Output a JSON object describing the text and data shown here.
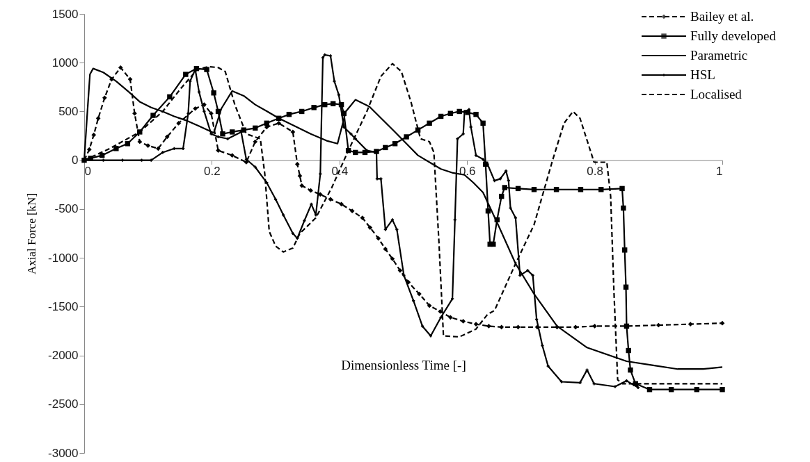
{
  "chart_data": {
    "type": "line",
    "xlabel": "Dimensionless Time [-]",
    "ylabel": "Axial Force [kN]",
    "xlim": [
      0,
      1
    ],
    "xticks": [
      0,
      0.2,
      0.4,
      0.6,
      0.8,
      1
    ],
    "ylim": [
      -3000,
      1500
    ],
    "yticks": [
      1500,
      1000,
      500,
      0,
      -500,
      -1000,
      -1500,
      -2000,
      -2500,
      -3000
    ],
    "legend": "top right",
    "series": [
      {
        "name": "Bailey et al.",
        "color": "#000000",
        "marker": "diamond",
        "line_style": "dashed",
        "x": [
          0,
          0.008,
          0.015,
          0.022,
          0.032,
          0.043,
          0.057,
          0.072,
          0.079,
          0.087,
          0.1,
          0.116,
          0.13,
          0.148,
          0.174,
          0.188,
          0.199,
          0.21,
          0.232,
          0.254,
          0.268,
          0.286,
          0.305,
          0.327,
          0.334,
          0.338,
          0.341,
          0.355,
          0.37,
          0.386,
          0.403,
          0.42,
          0.436,
          0.448,
          0.461,
          0.472,
          0.483,
          0.495,
          0.508,
          0.525,
          0.541,
          0.558,
          0.574,
          0.594,
          0.614,
          0.634,
          0.654,
          0.68,
          0.71,
          0.741,
          0.77,
          0.8,
          0.85,
          0.9,
          0.95,
          1
        ],
        "values": [
          0,
          110,
          260,
          430,
          640,
          830,
          950,
          830,
          480,
          190,
          150,
          120,
          240,
          380,
          530,
          570,
          480,
          100,
          50,
          -20,
          190,
          340,
          380,
          290,
          -40,
          -160,
          -260,
          -310,
          -350,
          -400,
          -450,
          -520,
          -590,
          -690,
          -800,
          -910,
          -1010,
          -1130,
          -1250,
          -1370,
          -1490,
          -1550,
          -1610,
          -1650,
          -1680,
          -1700,
          -1710,
          -1710,
          -1710,
          -1710,
          -1710,
          -1700,
          -1700,
          -1690,
          -1680,
          -1670
        ]
      },
      {
        "name": "Fully developed",
        "color": "#000000",
        "marker": "square",
        "line_style": "solid",
        "x": [
          0,
          0.01,
          0.028,
          0.05,
          0.068,
          0.087,
          0.108,
          0.134,
          0.159,
          0.176,
          0.192,
          0.203,
          0.21,
          0.217,
          0.232,
          0.25,
          0.268,
          0.286,
          0.305,
          0.321,
          0.341,
          0.36,
          0.377,
          0.39,
          0.403,
          0.407,
          0.414,
          0.425,
          0.44,
          0.458,
          0.472,
          0.487,
          0.505,
          0.523,
          0.541,
          0.559,
          0.574,
          0.588,
          0.601,
          0.614,
          0.625,
          0.629,
          0.633,
          0.636,
          0.641,
          0.647,
          0.654,
          0.659,
          0.68,
          0.705,
          0.74,
          0.778,
          0.81,
          0.843,
          0.845,
          0.847,
          0.849,
          0.85,
          0.853,
          0.856,
          0.864,
          0.886,
          0.92,
          0.96,
          1
        ],
        "values": [
          0,
          20,
          50,
          120,
          170,
          290,
          460,
          650,
          880,
          940,
          930,
          690,
          500,
          270,
          290,
          310,
          330,
          380,
          430,
          470,
          500,
          540,
          570,
          580,
          570,
          480,
          100,
          80,
          80,
          90,
          130,
          170,
          240,
          310,
          380,
          450,
          480,
          500,
          490,
          470,
          380,
          -40,
          -520,
          -860,
          -860,
          -610,
          -370,
          -280,
          -290,
          -300,
          -300,
          -300,
          -300,
          -290,
          -490,
          -920,
          -1300,
          -1700,
          -1950,
          -2150,
          -2290,
          -2350,
          -2350,
          -2350,
          -2350
        ]
      },
      {
        "name": "Parametric",
        "color": "#000000",
        "marker": "none",
        "line_style": "solid",
        "x": [
          0,
          0.004,
          0.009,
          0.014,
          0.03,
          0.05,
          0.07,
          0.087,
          0.105,
          0.123,
          0.141,
          0.159,
          0.18,
          0.203,
          0.215,
          0.232,
          0.25,
          0.268,
          0.287,
          0.305,
          0.33,
          0.355,
          0.38,
          0.397,
          0.41,
          0.425,
          0.447,
          0.467,
          0.487,
          0.505,
          0.523,
          0.541,
          0.559,
          0.578,
          0.596,
          0.61,
          0.625,
          0.65,
          0.676,
          0.705,
          0.741,
          0.788,
          0.85,
          0.89,
          0.93,
          0.97,
          1
        ],
        "values": [
          0,
          400,
          880,
          940,
          900,
          810,
          700,
          600,
          540,
          500,
          450,
          410,
          350,
          280,
          530,
          710,
          660,
          570,
          500,
          430,
          350,
          270,
          200,
          170,
          500,
          620,
          550,
          420,
          290,
          170,
          50,
          -20,
          -90,
          -130,
          -150,
          -230,
          -330,
          -680,
          -1060,
          -1370,
          -1700,
          -1920,
          -2060,
          -2100,
          -2140,
          -2140,
          -2120
        ]
      },
      {
        "name": "HSL",
        "color": "#000000",
        "marker": "cross",
        "line_style": "solid",
        "x": [
          0,
          0.03,
          0.06,
          0.09,
          0.105,
          0.123,
          0.141,
          0.155,
          0.163,
          0.166,
          0.174,
          0.18,
          0.188,
          0.199,
          0.21,
          0.225,
          0.246,
          0.254,
          0.268,
          0.286,
          0.3,
          0.312,
          0.327,
          0.334,
          0.345,
          0.356,
          0.363,
          0.37,
          0.374,
          0.377,
          0.386,
          0.392,
          0.399,
          0.407,
          0.418,
          0.425,
          0.443,
          0.458,
          0.459,
          0.465,
          0.472,
          0.483,
          0.49,
          0.501,
          0.516,
          0.53,
          0.543,
          0.559,
          0.577,
          0.581,
          0.585,
          0.594,
          0.596,
          0.603,
          0.606,
          0.614,
          0.625,
          0.632,
          0.643,
          0.652,
          0.661,
          0.665,
          0.668,
          0.676,
          0.683,
          0.695,
          0.703,
          0.709,
          0.718,
          0.727,
          0.748,
          0.777,
          0.788,
          0.799,
          0.832,
          0.85,
          0.868
        ],
        "values": [
          0,
          0,
          0,
          0,
          0,
          80,
          120,
          120,
          480,
          810,
          930,
          700,
          500,
          270,
          240,
          220,
          290,
          10,
          -70,
          -230,
          -400,
          -560,
          -750,
          -800,
          -620,
          -450,
          -560,
          -140,
          1050,
          1080,
          1070,
          810,
          670,
          340,
          270,
          220,
          100,
          80,
          -190,
          -190,
          -710,
          -610,
          -710,
          -1180,
          -1440,
          -1700,
          -1800,
          -1610,
          -1420,
          -610,
          220,
          270,
          500,
          520,
          340,
          50,
          10,
          -40,
          -210,
          -190,
          -110,
          -210,
          -490,
          -590,
          -1180,
          -1130,
          -1180,
          -1630,
          -1900,
          -2110,
          -2270,
          -2280,
          -2150,
          -2290,
          -2320,
          -2260,
          -2330
        ]
      },
      {
        "name": "Localised",
        "color": "#000000",
        "marker": "none",
        "line_style": "dashed",
        "x": [
          0,
          0.04,
          0.087,
          0.123,
          0.152,
          0.177,
          0.195,
          0.21,
          0.221,
          0.236,
          0.254,
          0.276,
          0.283,
          0.29,
          0.3,
          0.312,
          0.327,
          0.338,
          0.363,
          0.388,
          0.414,
          0.443,
          0.465,
          0.483,
          0.497,
          0.512,
          0.527,
          0.541,
          0.548,
          0.556,
          0.563,
          0.588,
          0.614,
          0.632,
          0.643,
          0.676,
          0.705,
          0.734,
          0.752,
          0.766,
          0.777,
          0.799,
          0.819,
          0.825,
          0.83,
          0.836,
          0.843,
          0.9,
          0.95,
          1
        ],
        "values": [
          0,
          120,
          290,
          500,
          740,
          930,
          960,
          950,
          910,
          570,
          270,
          220,
          -140,
          -730,
          -880,
          -940,
          -900,
          -750,
          -590,
          -280,
          100,
          500,
          860,
          990,
          910,
          600,
          220,
          190,
          80,
          -850,
          -1800,
          -1810,
          -1730,
          -1580,
          -1540,
          -1060,
          -660,
          0,
          380,
          500,
          430,
          -20,
          -20,
          -370,
          -1320,
          -2250,
          -2290,
          -2290,
          -2290,
          -2290
        ]
      }
    ]
  }
}
